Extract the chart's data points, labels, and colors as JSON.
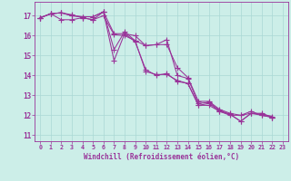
{
  "xlabel": "Windchill (Refroidissement éolien,°C)",
  "bg_color": "#cceee8",
  "line_color": "#993399",
  "grid_color": "#aad8d4",
  "axis_color": "#993399",
  "tick_color": "#993399",
  "xlim": [
    -0.5,
    23.5
  ],
  "ylim": [
    10.7,
    17.7
  ],
  "yticks": [
    11,
    12,
    13,
    14,
    15,
    16,
    17
  ],
  "xticks": [
    0,
    1,
    2,
    3,
    4,
    5,
    6,
    7,
    8,
    9,
    10,
    11,
    12,
    13,
    14,
    15,
    16,
    17,
    18,
    19,
    20,
    21,
    22,
    23
  ],
  "series": [
    [
      16.9,
      17.1,
      17.15,
      17.0,
      16.95,
      16.95,
      17.2,
      14.75,
      16.1,
      16.0,
      15.5,
      15.55,
      15.8,
      14.0,
      13.85,
      12.6,
      12.65,
      12.25,
      12.05,
      11.7,
      12.1,
      12.05,
      11.95,
      null
    ],
    [
      16.9,
      17.1,
      17.15,
      17.05,
      16.9,
      16.8,
      17.0,
      16.05,
      16.0,
      15.75,
      14.2,
      14.05,
      14.05,
      13.75,
      13.6,
      12.5,
      12.6,
      12.2,
      12.05,
      11.7,
      12.1,
      12.0,
      11.9,
      null
    ],
    [
      16.9,
      17.1,
      17.15,
      17.0,
      16.95,
      16.95,
      17.2,
      15.3,
      16.2,
      15.75,
      15.5,
      15.55,
      15.55,
      14.4,
      13.9,
      12.7,
      12.7,
      12.3,
      12.1,
      12.0,
      12.2,
      12.0,
      11.9,
      null
    ],
    [
      16.9,
      17.1,
      16.8,
      16.8,
      16.9,
      16.8,
      17.2,
      16.1,
      16.1,
      15.7,
      14.3,
      14.0,
      14.1,
      13.7,
      13.6,
      12.5,
      12.5,
      12.2,
      12.0,
      12.0,
      12.1,
      12.1,
      11.9,
      null
    ]
  ]
}
